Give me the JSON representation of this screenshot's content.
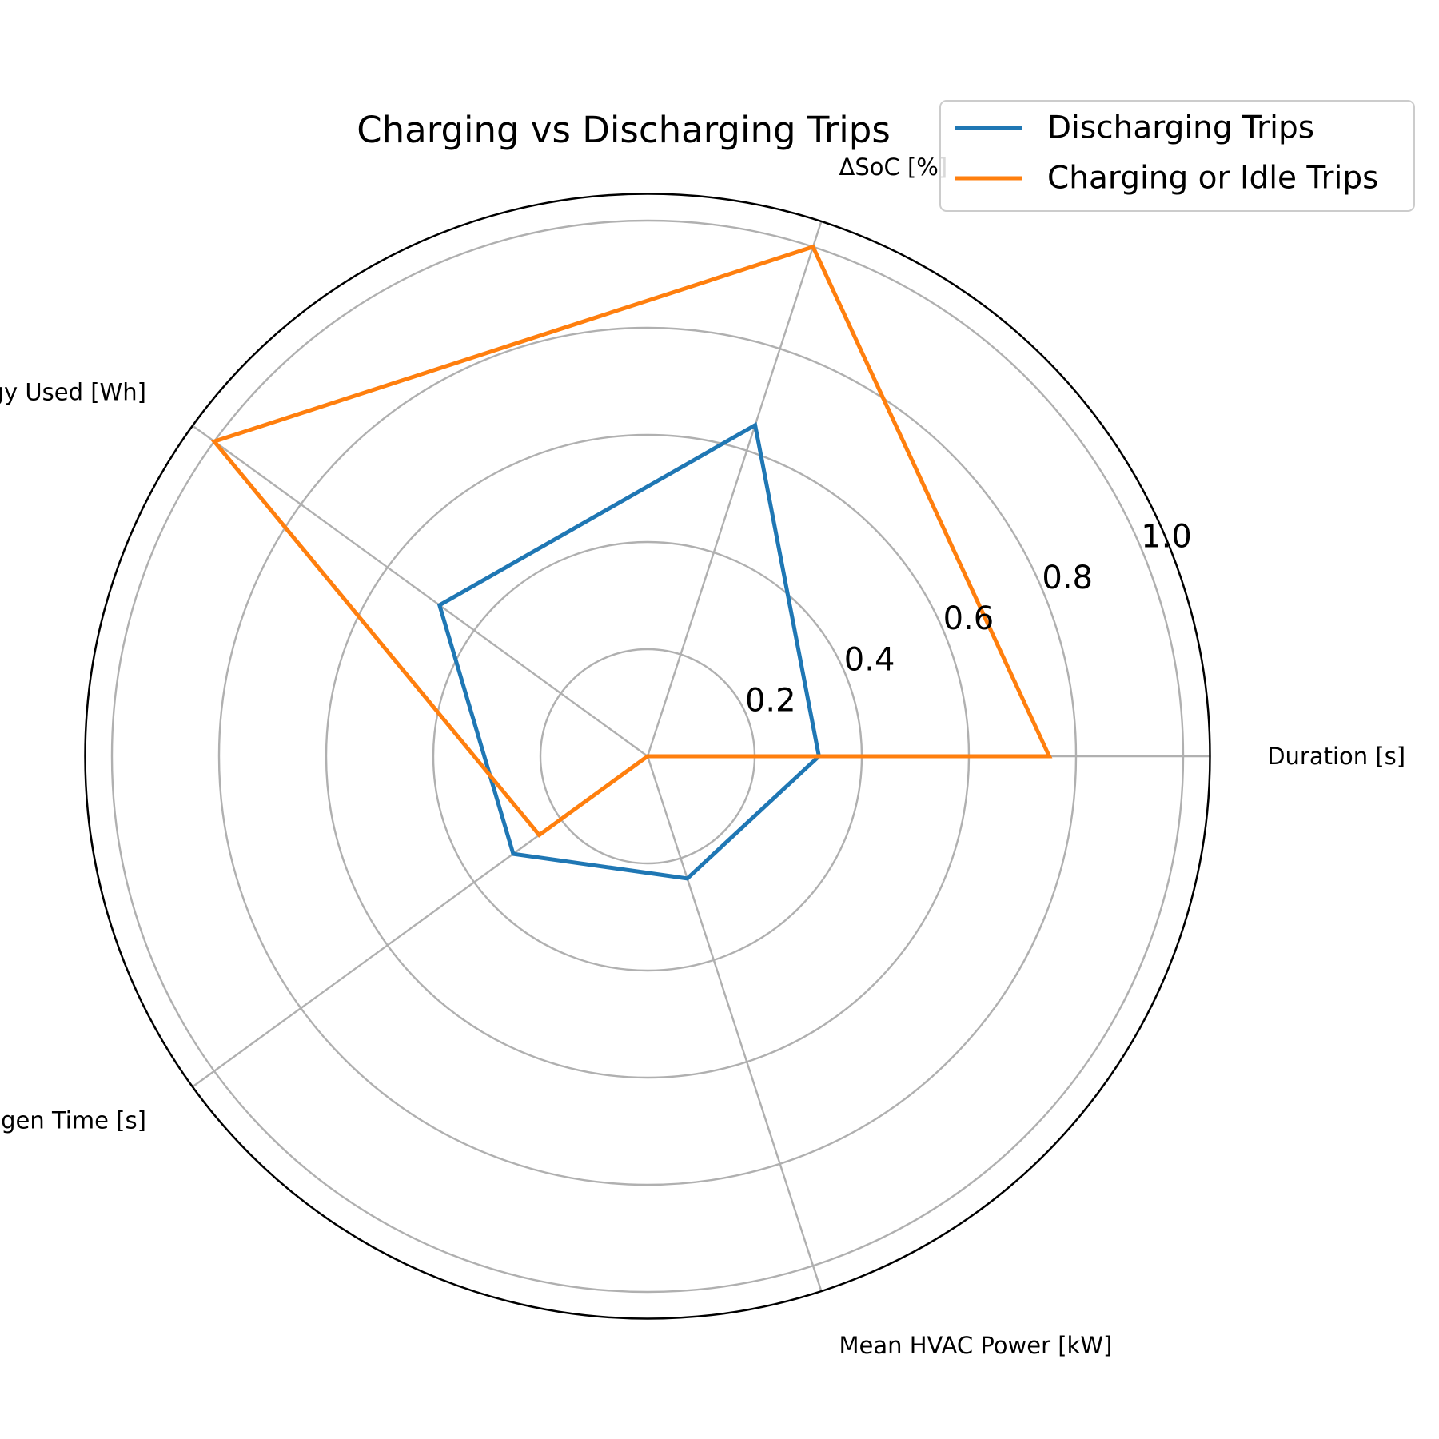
{
  "chart_data": {
    "type": "radar",
    "title": "Charging vs Discharging Trips",
    "axes": [
      "Duration [s]",
      "ΔSoC [%]",
      "Energy Used [Wh]",
      "Regen Time [s]",
      "Mean HVAC Power [kW]"
    ],
    "rlim": [
      0,
      1.05
    ],
    "rticks": [
      0.2,
      0.4,
      0.6,
      0.8,
      1.0
    ],
    "rtick_labels": [
      "0.2",
      "0.4",
      "0.6",
      "0.8",
      "1.0"
    ],
    "grid": true,
    "legend_position": "top-right",
    "series": [
      {
        "name": "Discharging Trips",
        "color": "#1f77b4",
        "values": [
          0.32,
          0.65,
          0.48,
          0.31,
          0.24
        ]
      },
      {
        "name": "Charging or Idle Trips",
        "color": "#ff7f0e",
        "values": [
          0.75,
          1.0,
          1.0,
          0.25,
          0.0
        ]
      }
    ]
  }
}
